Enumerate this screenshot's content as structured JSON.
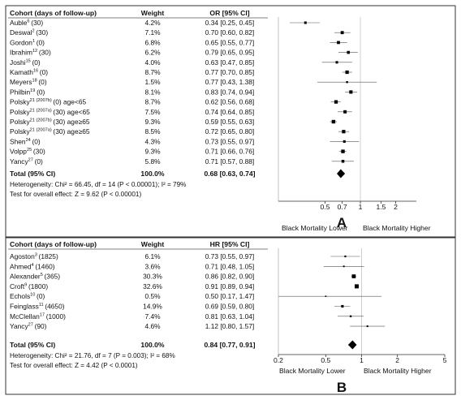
{
  "chart_data": [
    {
      "type": "forest",
      "panel_label": "A",
      "headers": {
        "study": "Cohort (days of follow-up)",
        "weight": "Weight",
        "effect": "OR [95% CI]"
      },
      "studies": [
        {
          "name": "Auble",
          "ref": "6",
          "followup": "(30)",
          "weight": "4.2%",
          "est": 0.34,
          "lo": 0.25,
          "hi": 0.45,
          "ci_text": "0.34 [0.25, 0.45]"
        },
        {
          "name": "Deswal",
          "ref": "2",
          "followup": "(30)",
          "weight": "7.1%",
          "est": 0.7,
          "lo": 0.6,
          "hi": 0.82,
          "ci_text": "0.70 [0.60, 0.82]"
        },
        {
          "name": "Gordon",
          "ref": "1",
          "followup": "(0)",
          "weight": "6.8%",
          "est": 0.65,
          "lo": 0.55,
          "hi": 0.77,
          "ci_text": "0.65 [0.55, 0.77]"
        },
        {
          "name": "Ibrahim",
          "ref": "12",
          "followup": "(30)",
          "weight": "6.2%",
          "est": 0.79,
          "lo": 0.65,
          "hi": 0.95,
          "ci_text": "0.79 [0.65, 0.95]"
        },
        {
          "name": "Joshi",
          "ref": "15",
          "followup": "(0)",
          "weight": "4.0%",
          "est": 0.63,
          "lo": 0.47,
          "hi": 0.85,
          "ci_text": "0.63 [0.47, 0.85]"
        },
        {
          "name": "Kamath",
          "ref": "16",
          "followup": "(0)",
          "weight": "8.7%",
          "est": 0.77,
          "lo": 0.7,
          "hi": 0.85,
          "ci_text": "0.77 [0.70, 0.85]"
        },
        {
          "name": "Meyers",
          "ref": "18",
          "followup": "(0)",
          "weight": "1.5%",
          "est": 0.77,
          "lo": 0.43,
          "hi": 1.38,
          "ci_text": "0.77 [0.43, 1.38]"
        },
        {
          "name": "Philbin",
          "ref": "19",
          "followup": "(0)",
          "weight": "8.1%",
          "est": 0.83,
          "lo": 0.74,
          "hi": 0.94,
          "ci_text": "0.83 [0.74, 0.94]"
        },
        {
          "name": "Polsky",
          "ref": "21 (2007b)",
          "followup": "(0) age<65",
          "weight": "8.7%",
          "est": 0.62,
          "lo": 0.56,
          "hi": 0.68,
          "ci_text": "0.62 [0.56, 0.68]"
        },
        {
          "name": "Polsky",
          "ref": "21 (2007a)",
          "followup": "(30) age<65",
          "weight": "7.5%",
          "est": 0.74,
          "lo": 0.64,
          "hi": 0.85,
          "ci_text": "0.74 [0.64, 0.85]"
        },
        {
          "name": "Polsky",
          "ref": "21 (2007b)",
          "followup": "(30) age≥65",
          "weight": "9.3%",
          "est": 0.59,
          "lo": 0.55,
          "hi": 0.63,
          "ci_text": "0.59 [0.55, 0.63]"
        },
        {
          "name": "Polsky",
          "ref": "21 (2007a)",
          "followup": "(30) age≥65",
          "weight": "8.5%",
          "est": 0.72,
          "lo": 0.65,
          "hi": 0.8,
          "ci_text": "0.72 [0.65, 0.80]"
        },
        {
          "name": "Shen",
          "ref": "24",
          "followup": "(0)",
          "weight": "4.3%",
          "est": 0.73,
          "lo": 0.55,
          "hi": 0.97,
          "ci_text": "0.73 [0.55, 0.97]"
        },
        {
          "name": "Volpp",
          "ref": "25",
          "followup": "(30)",
          "weight": "9.3%",
          "est": 0.71,
          "lo": 0.66,
          "hi": 0.76,
          "ci_text": "0.71 [0.66, 0.76]"
        },
        {
          "name": "Yancy",
          "ref": "27",
          "followup": "(0)",
          "weight": "5.8%",
          "est": 0.71,
          "lo": 0.57,
          "hi": 0.88,
          "ci_text": "0.71 [0.57, 0.88]"
        }
      ],
      "total": {
        "label": "Total (95% CI)",
        "weight": "100.0%",
        "est": 0.68,
        "lo": 0.63,
        "hi": 0.74,
        "ci_text": "0.68 [0.63, 0.74]"
      },
      "heterogeneity": "Heterogeneity: Chi² = 66.45, df = 14 (P < 0.00001); I² = 79%",
      "overall_effect": "Test for overall effect: Z = 9.62 (P < 0.00001)",
      "x_scale": "log",
      "xlim": [
        0.2,
        3.0
      ],
      "x_ticks": [
        0.5,
        0.7,
        1,
        1.5,
        2
      ],
      "x_tick_labels": [
        "0.5",
        "0.7",
        "1",
        "1.5",
        "2"
      ],
      "direction_labels": [
        "Black Mortality Lower",
        "Black Mortality Higher"
      ]
    },
    {
      "type": "forest",
      "panel_label": "B",
      "headers": {
        "study": "Cohort (days of follow-up)",
        "weight": "Weight",
        "effect": "HR [95% CI]"
      },
      "studies": [
        {
          "name": "Agoston",
          "ref": "3",
          "followup": "(1825)",
          "weight": "6.1%",
          "est": 0.73,
          "lo": 0.55,
          "hi": 0.97,
          "ci_text": "0.73 [0.55, 0.97]"
        },
        {
          "name": "Ahmed",
          "ref": "4",
          "followup": "(1460)",
          "weight": "3.6%",
          "est": 0.71,
          "lo": 0.48,
          "hi": 1.05,
          "ci_text": "0.71 [0.48, 1.05]"
        },
        {
          "name": "Alexander",
          "ref": "5",
          "followup": "(365)",
          "weight": "30.3%",
          "est": 0.86,
          "lo": 0.82,
          "hi": 0.9,
          "ci_text": "0.86 [0.82, 0.90]"
        },
        {
          "name": "Croft",
          "ref": "9",
          "followup": "(1800)",
          "weight": "32.6%",
          "est": 0.91,
          "lo": 0.89,
          "hi": 0.94,
          "ci_text": "0.91 [0.89, 0.94]"
        },
        {
          "name": "Echols",
          "ref": "10",
          "followup": "(0)",
          "weight": "0.5%",
          "est": 0.5,
          "lo": 0.17,
          "hi": 1.47,
          "ci_text": "0.50 [0.17, 1.47]"
        },
        {
          "name": "Feinglass",
          "ref": "11",
          "followup": "(4650)",
          "weight": "14.9%",
          "est": 0.69,
          "lo": 0.59,
          "hi": 0.8,
          "ci_text": "0.69 [0.59, 0.80]"
        },
        {
          "name": "McClellan",
          "ref": "17",
          "followup": "(1000)",
          "weight": "7.4%",
          "est": 0.81,
          "lo": 0.63,
          "hi": 1.04,
          "ci_text": "0.81 [0.63, 1.04]"
        },
        {
          "name": "Yancy",
          "ref": "27",
          "followup": "(90)",
          "weight": "4.6%",
          "est": 1.12,
          "lo": 0.8,
          "hi": 1.57,
          "ci_text": "1.12 [0.80, 1.57]"
        }
      ],
      "total": {
        "label": "Total (95% CI)",
        "weight": "100.0%",
        "est": 0.84,
        "lo": 0.77,
        "hi": 0.91,
        "ci_text": "0.84 [0.77, 0.91]"
      },
      "heterogeneity": "Heterogeneity: Chi² = 21.76, df = 7 (P = 0.003); I² = 68%",
      "overall_effect": "Test for overall effect: Z = 4.42 (P < 0.0001)",
      "x_scale": "log",
      "xlim": [
        0.2,
        5
      ],
      "x_ticks": [
        0.2,
        0.5,
        1,
        2,
        5
      ],
      "x_tick_labels": [
        "0.2",
        "0.5",
        "1",
        "2",
        "5"
      ],
      "direction_labels": [
        "Black Mortality Lower",
        "Black Mortality Higher"
      ]
    }
  ]
}
